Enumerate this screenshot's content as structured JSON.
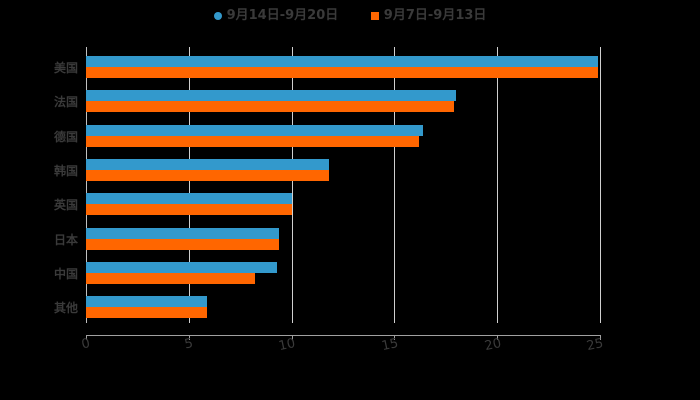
{
  "legend": {
    "series1": {
      "label": "9月14日-9月20日",
      "color": "#3399cc",
      "marker": "circle"
    },
    "series2": {
      "label": "9月7日-9月13日",
      "color": "#ff6600",
      "marker": "square"
    }
  },
  "x_axis": {
    "ticks": [
      "0",
      "5",
      "10",
      "15",
      "20",
      "25"
    ]
  },
  "chart_data": {
    "type": "bar",
    "orientation": "horizontal",
    "title": "",
    "xlabel": "",
    "ylabel": "",
    "xlim": [
      0,
      25
    ],
    "grid": true,
    "legend_position": "top",
    "categories": [
      "美国",
      "法国",
      "德国",
      "韩国",
      "英国",
      "日本",
      "中国",
      "其他"
    ],
    "series": [
      {
        "name": "9月14日-9月20日",
        "color": "#3399cc",
        "values": [
          24.9,
          18.0,
          16.4,
          11.8,
          10.0,
          9.4,
          9.3,
          5.9
        ]
      },
      {
        "name": "9月7日-9月13日",
        "color": "#ff6600",
        "values": [
          24.9,
          17.9,
          16.2,
          11.8,
          10.0,
          9.4,
          8.2,
          5.9
        ]
      }
    ]
  }
}
